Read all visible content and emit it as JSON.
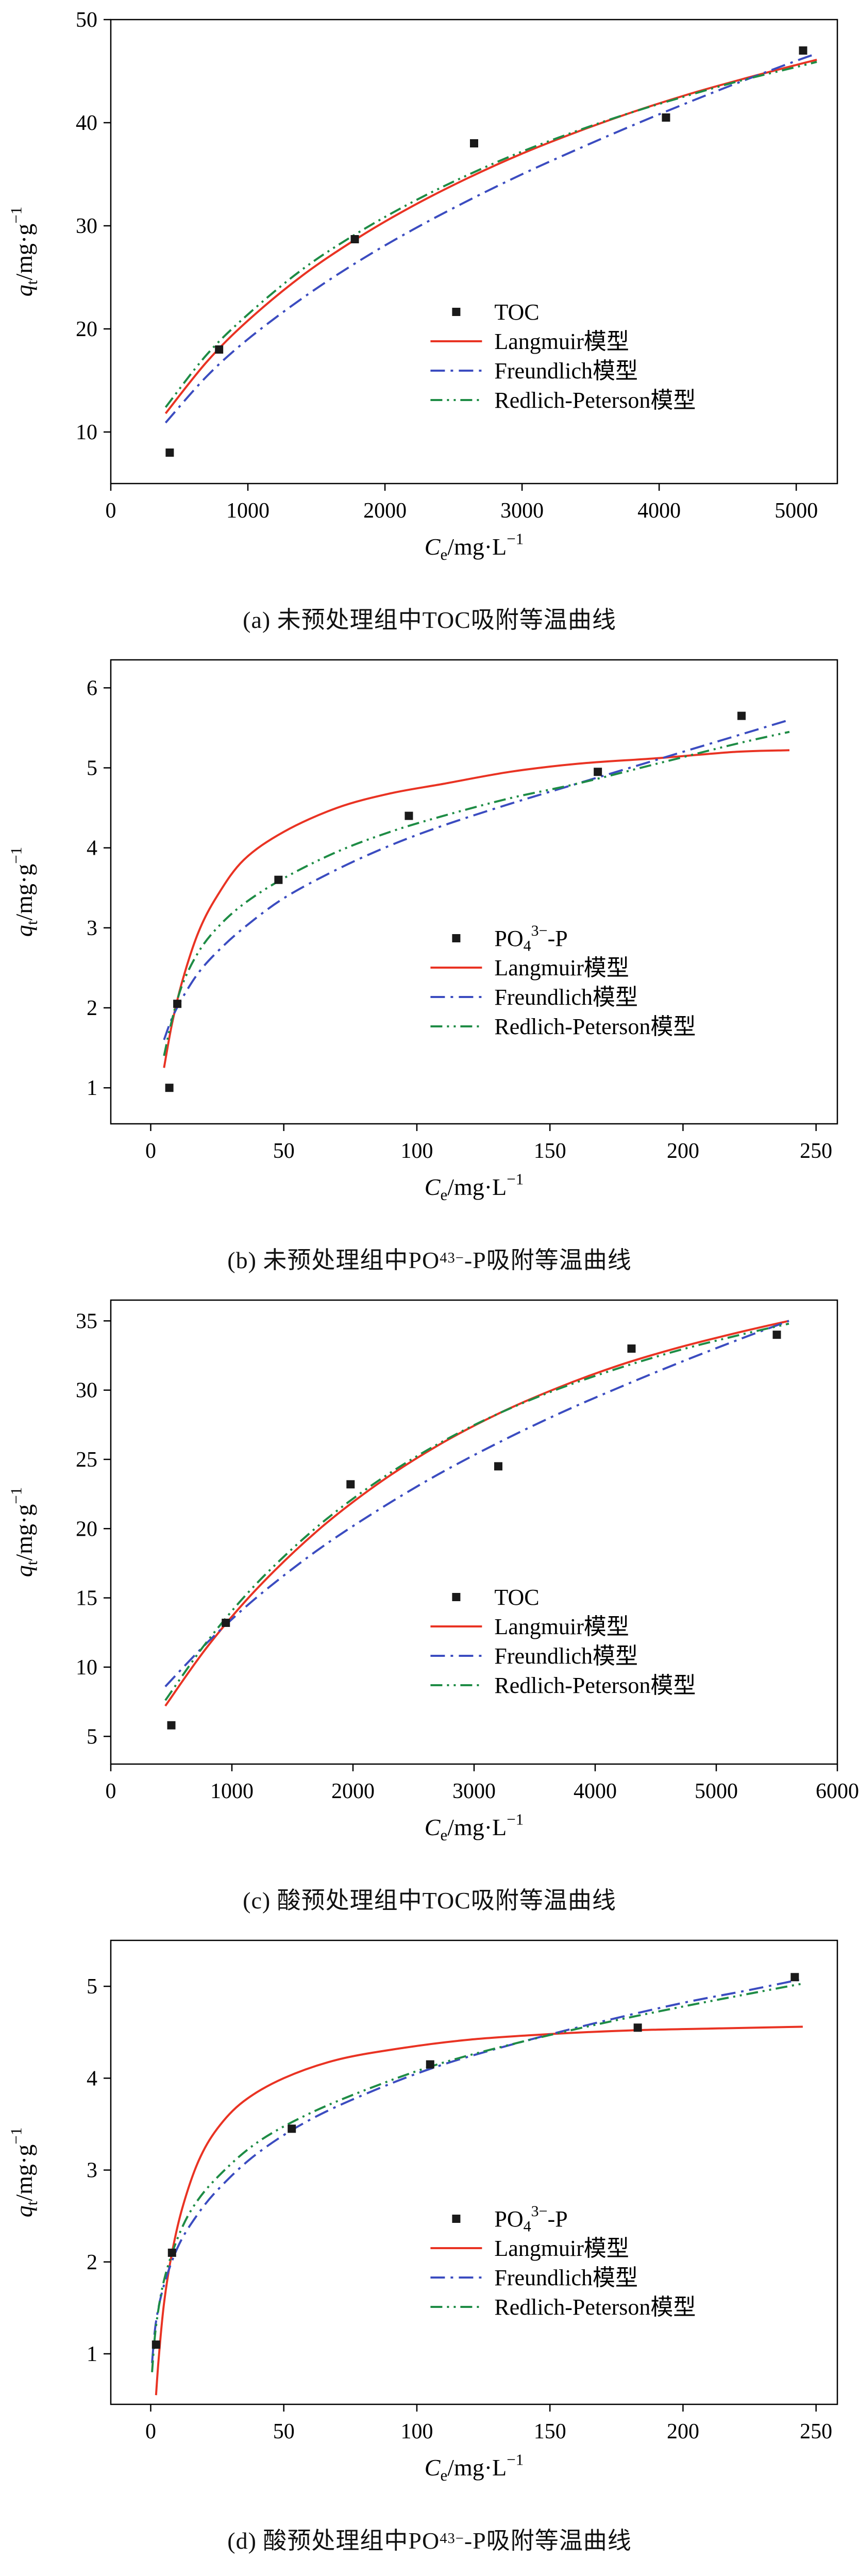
{
  "colors": {
    "scatter": "#1a1a1a",
    "langmuir": "#e93323",
    "freundlich": "#3b4cc0",
    "redlich": "#1e8c45",
    "axis": "#000000"
  },
  "chart_data": [
    {
      "type": "scatter",
      "caption": "(a) 未预处理组中TOC吸附等温曲线",
      "xlabel": {
        "var": "C",
        "sub": "e",
        "unit": "/mg·L",
        "sup": "−1"
      },
      "ylabel": {
        "var": "q",
        "sub": "t",
        "unit": "/mg·g",
        "sup": "−1"
      },
      "xlim": [
        0,
        5300
      ],
      "ylim": [
        5,
        50
      ],
      "xticks": [
        0,
        1000,
        2000,
        3000,
        4000,
        5000
      ],
      "yticks": [
        10,
        20,
        30,
        40,
        50
      ],
      "legend_pos": [
        0.44,
        0.63
      ],
      "scatter": {
        "label": "TOC",
        "points": [
          [
            430,
            8
          ],
          [
            790,
            18
          ],
          [
            1780,
            28.7
          ],
          [
            2650,
            38
          ],
          [
            4050,
            40.5
          ],
          [
            5050,
            47
          ]
        ]
      },
      "series": [
        {
          "name": "Langmuir模型",
          "style": "solid",
          "color_key": "langmuir",
          "points": [
            [
              400,
              11.8
            ],
            [
              700,
              16.8
            ],
            [
              1000,
              20.8
            ],
            [
              1400,
              25.2
            ],
            [
              1800,
              28.8
            ],
            [
              2200,
              31.9
            ],
            [
              2600,
              34.6
            ],
            [
              3000,
              37
            ],
            [
              3400,
              39.1
            ],
            [
              3800,
              41
            ],
            [
              4200,
              42.7
            ],
            [
              4600,
              44.2
            ],
            [
              5000,
              45.6
            ],
            [
              5150,
              46.1
            ]
          ]
        },
        {
          "name": "Freundlich模型",
          "style": "dashdot",
          "color_key": "freundlich",
          "points": [
            [
              400,
              10.9
            ],
            [
              700,
              15.4
            ],
            [
              1000,
              19
            ],
            [
              1400,
              23
            ],
            [
              1800,
              26.5
            ],
            [
              2200,
              29.6
            ],
            [
              2600,
              32.4
            ],
            [
              3000,
              35
            ],
            [
              3400,
              37.4
            ],
            [
              3800,
              39.7
            ],
            [
              4200,
              41.9
            ],
            [
              4600,
              44
            ],
            [
              5000,
              46
            ],
            [
              5150,
              46.7
            ]
          ]
        },
        {
          "name": "Redlich-Peterson模型",
          "style": "dashdotdot",
          "color_key": "redlich",
          "points": [
            [
              400,
              12.4
            ],
            [
              700,
              17.5
            ],
            [
              1000,
              21.4
            ],
            [
              1400,
              25.8
            ],
            [
              1800,
              29.3
            ],
            [
              2200,
              32.3
            ],
            [
              2600,
              34.9
            ],
            [
              3000,
              37.2
            ],
            [
              3400,
              39.2
            ],
            [
              3800,
              41
            ],
            [
              4200,
              42.6
            ],
            [
              4600,
              44.1
            ],
            [
              5000,
              45.4
            ],
            [
              5150,
              45.9
            ]
          ]
        }
      ]
    },
    {
      "type": "scatter",
      "caption": "(b) 未预处理组中PO_{4}^{3−}-P吸附等温曲线",
      "xlabel": {
        "var": "C",
        "sub": "e",
        "unit": "/mg·L",
        "sup": "−1"
      },
      "ylabel": {
        "var": "q",
        "sub": "t",
        "unit": "/mg·g",
        "sup": "−1"
      },
      "xlim": [
        -15,
        258
      ],
      "ylim": [
        0.55,
        6.35
      ],
      "xticks": [
        0,
        50,
        100,
        150,
        200,
        250
      ],
      "yticks": [
        1,
        2,
        3,
        4,
        5,
        6
      ],
      "legend_pos": [
        0.44,
        0.6
      ],
      "scatter": {
        "label": "PO_{4}^{3−}-P",
        "points": [
          [
            7,
            1.0
          ],
          [
            10,
            2.05
          ],
          [
            48,
            3.6
          ],
          [
            97,
            4.4
          ],
          [
            168,
            4.95
          ],
          [
            222,
            5.65
          ]
        ]
      },
      "series": [
        {
          "name": "Langmuir模型",
          "style": "solid",
          "color_key": "langmuir",
          "points": [
            [
              5,
              1.25
            ],
            [
              8,
              1.8
            ],
            [
              12,
              2.35
            ],
            [
              18,
              2.95
            ],
            [
              25,
              3.4
            ],
            [
              35,
              3.85
            ],
            [
              50,
              4.2
            ],
            [
              70,
              4.5
            ],
            [
              90,
              4.68
            ],
            [
              110,
              4.8
            ],
            [
              135,
              4.95
            ],
            [
              160,
              5.05
            ],
            [
              190,
              5.12
            ],
            [
              220,
              5.2
            ],
            [
              240,
              5.22
            ]
          ]
        },
        {
          "name": "Freundlich模型",
          "style": "dashdot",
          "color_key": "freundlich",
          "points": [
            [
              5,
              1.6
            ],
            [
              8,
              1.87
            ],
            [
              12,
              2.13
            ],
            [
              18,
              2.44
            ],
            [
              25,
              2.7
            ],
            [
              35,
              3.0
            ],
            [
              50,
              3.37
            ],
            [
              70,
              3.73
            ],
            [
              90,
              4.03
            ],
            [
              110,
              4.28
            ],
            [
              135,
              4.55
            ],
            [
              160,
              4.8
            ],
            [
              190,
              5.1
            ],
            [
              220,
              5.4
            ],
            [
              240,
              5.6
            ]
          ]
        },
        {
          "name": "Redlich-Peterson模型",
          "style": "dashdotdot",
          "color_key": "redlich",
          "points": [
            [
              5,
              1.4
            ],
            [
              8,
              1.85
            ],
            [
              12,
              2.3
            ],
            [
              18,
              2.7
            ],
            [
              25,
              3.0
            ],
            [
              35,
              3.3
            ],
            [
              50,
              3.62
            ],
            [
              70,
              3.95
            ],
            [
              90,
              4.2
            ],
            [
              110,
              4.4
            ],
            [
              135,
              4.62
            ],
            [
              160,
              4.8
            ],
            [
              190,
              5.05
            ],
            [
              220,
              5.3
            ],
            [
              240,
              5.45
            ]
          ]
        }
      ]
    },
    {
      "type": "scatter",
      "caption": "(c) 酸预处理组中TOC吸附等温曲线",
      "xlabel": {
        "var": "C",
        "sub": "e",
        "unit": "/mg·L",
        "sup": "−1"
      },
      "ylabel": {
        "var": "q",
        "sub": "t",
        "unit": "/mg·g",
        "sup": "−1"
      },
      "xlim": [
        0,
        6000
      ],
      "ylim": [
        3,
        36.5
      ],
      "xticks": [
        0,
        1000,
        2000,
        3000,
        4000,
        5000,
        6000
      ],
      "yticks": [
        5,
        10,
        15,
        20,
        25,
        30,
        35
      ],
      "legend_pos": [
        0.44,
        0.64
      ],
      "scatter": {
        "label": "TOC",
        "points": [
          [
            500,
            5.8
          ],
          [
            950,
            13.2
          ],
          [
            1980,
            23.2
          ],
          [
            3200,
            24.5
          ],
          [
            4300,
            33
          ],
          [
            5500,
            34
          ]
        ]
      },
      "series": [
        {
          "name": "Langmuir模型",
          "style": "solid",
          "color_key": "langmuir",
          "points": [
            [
              450,
              7.2
            ],
            [
              800,
              11.5
            ],
            [
              1200,
              15.6
            ],
            [
              1700,
              19.8
            ],
            [
              2200,
              23.2
            ],
            [
              2700,
              26
            ],
            [
              3200,
              28.3
            ],
            [
              3700,
              30.2
            ],
            [
              4200,
              31.8
            ],
            [
              4700,
              33.1
            ],
            [
              5200,
              34.2
            ],
            [
              5600,
              35
            ]
          ]
        },
        {
          "name": "Freundlich模型",
          "style": "dashdot",
          "color_key": "freundlich",
          "points": [
            [
              450,
              8.6
            ],
            [
              800,
              11.8
            ],
            [
              1200,
              15
            ],
            [
              1700,
              18.4
            ],
            [
              2200,
              21.3
            ],
            [
              2700,
              23.9
            ],
            [
              3200,
              26.2
            ],
            [
              3700,
              28.3
            ],
            [
              4200,
              30.2
            ],
            [
              4700,
              32
            ],
            [
              5200,
              33.7
            ],
            [
              5600,
              35
            ]
          ]
        },
        {
          "name": "Redlich-Peterson模型",
          "style": "dashdotdot",
          "color_key": "redlich",
          "points": [
            [
              450,
              7.6
            ],
            [
              800,
              11.9
            ],
            [
              1200,
              16
            ],
            [
              1700,
              20.1
            ],
            [
              2200,
              23.4
            ],
            [
              2700,
              26.1
            ],
            [
              3200,
              28.3
            ],
            [
              3700,
              30.1
            ],
            [
              4200,
              31.6
            ],
            [
              4700,
              32.9
            ],
            [
              5200,
              34
            ],
            [
              5600,
              34.8
            ]
          ]
        }
      ]
    },
    {
      "type": "scatter",
      "caption": "(d) 酸预处理组中PO_{4}^{3−}-P吸附等温曲线",
      "xlabel": {
        "var": "C",
        "sub": "e",
        "unit": "/mg·L",
        "sup": "−1"
      },
      "ylabel": {
        "var": "q",
        "sub": "t",
        "unit": "/mg·g",
        "sup": "−1"
      },
      "xlim": [
        -15,
        258
      ],
      "ylim": [
        0.45,
        5.5
      ],
      "xticks": [
        0,
        50,
        100,
        150,
        200,
        250
      ],
      "yticks": [
        1,
        2,
        3,
        4,
        5
      ],
      "legend_pos": [
        0.44,
        0.6
      ],
      "scatter": {
        "label": "PO_{4}^{3−}-P",
        "points": [
          [
            2,
            1.1
          ],
          [
            8,
            2.1
          ],
          [
            53,
            3.45
          ],
          [
            105,
            4.15
          ],
          [
            183,
            4.55
          ],
          [
            242,
            5.1
          ]
        ]
      },
      "series": [
        {
          "name": "Langmuir模型",
          "style": "solid",
          "color_key": "langmuir",
          "points": [
            [
              2,
              0.55
            ],
            [
              3,
              0.95
            ],
            [
              5,
              1.55
            ],
            [
              8,
              2.1
            ],
            [
              12,
              2.6
            ],
            [
              18,
              3.1
            ],
            [
              25,
              3.45
            ],
            [
              35,
              3.75
            ],
            [
              50,
              4.0
            ],
            [
              70,
              4.2
            ],
            [
              95,
              4.33
            ],
            [
              120,
              4.42
            ],
            [
              150,
              4.48
            ],
            [
              180,
              4.52
            ],
            [
              210,
              4.54
            ],
            [
              245,
              4.56
            ]
          ]
        },
        {
          "name": "Freundlich模型",
          "style": "dashdot",
          "color_key": "freundlich",
          "points": [
            [
              0.5,
              0.9
            ],
            [
              2,
              1.35
            ],
            [
              5,
              1.75
            ],
            [
              10,
              2.15
            ],
            [
              16,
              2.45
            ],
            [
              25,
              2.78
            ],
            [
              40,
              3.18
            ],
            [
              60,
              3.55
            ],
            [
              85,
              3.88
            ],
            [
              110,
              4.15
            ],
            [
              140,
              4.4
            ],
            [
              170,
              4.62
            ],
            [
              200,
              4.82
            ],
            [
              225,
              4.96
            ],
            [
              245,
              5.08
            ]
          ]
        },
        {
          "name": "Redlich-Peterson模型",
          "style": "dashdotdot",
          "color_key": "redlich",
          "points": [
            [
              0.5,
              0.8
            ],
            [
              2,
              1.3
            ],
            [
              5,
              1.8
            ],
            [
              10,
              2.25
            ],
            [
              16,
              2.6
            ],
            [
              25,
              2.92
            ],
            [
              40,
              3.3
            ],
            [
              60,
              3.62
            ],
            [
              85,
              3.92
            ],
            [
              110,
              4.17
            ],
            [
              140,
              4.4
            ],
            [
              170,
              4.6
            ],
            [
              200,
              4.78
            ],
            [
              225,
              4.92
            ],
            [
              245,
              5.03
            ]
          ]
        }
      ]
    }
  ]
}
